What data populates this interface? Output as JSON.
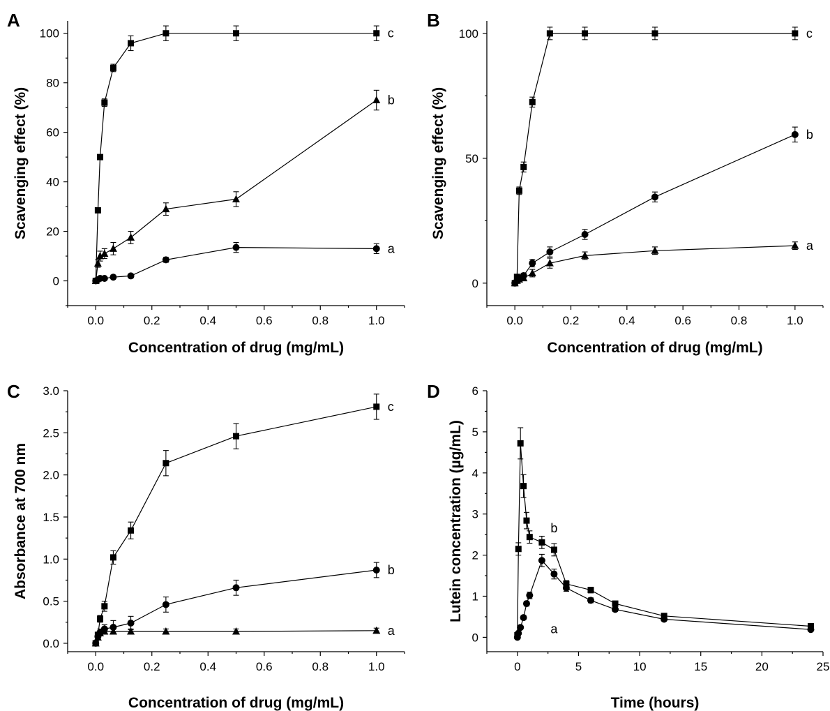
{
  "chart_data": [
    {
      "panel": "A",
      "type": "line",
      "xlabel": "Concentration of drug (mg/mL)",
      "ylabel": "Scavenging effect (%)",
      "xlim": [
        -0.1,
        1.1
      ],
      "ylim": [
        -10,
        105
      ],
      "xticks": [
        "0.0",
        "0.2",
        "0.4",
        "0.6",
        "0.8",
        "1.0"
      ],
      "yticks": [
        "0",
        "20",
        "40",
        "60",
        "80",
        "100"
      ],
      "series": [
        {
          "label": "c",
          "marker": "square",
          "x": [
            0,
            0.0078,
            0.0156,
            0.03125,
            0.0625,
            0.125,
            0.25,
            0.5,
            1.0
          ],
          "y": [
            0,
            28.5,
            50,
            72,
            86,
            96,
            100,
            100,
            100
          ],
          "err": [
            0.3,
            1,
            1,
            1.5,
            1.5,
            3,
            3,
            3,
            3
          ]
        },
        {
          "label": "b",
          "marker": "triangle",
          "x": [
            0,
            0.0078,
            0.0156,
            0.03125,
            0.0625,
            0.125,
            0.25,
            0.5,
            1.0
          ],
          "y": [
            0,
            7,
            10,
            11,
            13,
            17.5,
            29,
            33,
            73
          ],
          "err": [
            0.3,
            1.5,
            2,
            2,
            2.5,
            2.5,
            2.5,
            3,
            4
          ]
        },
        {
          "label": "a",
          "marker": "circle",
          "x": [
            0,
            0.0078,
            0.0156,
            0.03125,
            0.0625,
            0.125,
            0.25,
            0.5,
            1.0
          ],
          "y": [
            0,
            0.5,
            1,
            1,
            1.5,
            2,
            8.5,
            13.5,
            13
          ],
          "err": [
            0.3,
            0.4,
            0.5,
            0.5,
            0.5,
            0.8,
            1,
            2,
            2
          ]
        }
      ]
    },
    {
      "panel": "B",
      "type": "line",
      "xlabel": "Concentration of drug (mg/mL)",
      "ylabel": "Scavenging effect (%)",
      "xlim": [
        -0.1,
        1.1
      ],
      "ylim": [
        -9,
        105
      ],
      "xticks": [
        "0.0",
        "0.2",
        "0.4",
        "0.6",
        "0.8",
        "1.0"
      ],
      "yticks": [
        "0",
        "50",
        "100"
      ],
      "series": [
        {
          "label": "c",
          "marker": "square",
          "x": [
            0,
            0.0078,
            0.0156,
            0.03125,
            0.0625,
            0.125,
            0.25,
            0.5,
            1.0
          ],
          "y": [
            0,
            2.5,
            37,
            46.5,
            72.5,
            100,
            100,
            100,
            100
          ],
          "err": [
            0.3,
            0.5,
            1.5,
            2,
            2,
            2.5,
            2.5,
            2.5,
            2.5
          ]
        },
        {
          "label": "b",
          "marker": "circle",
          "x": [
            0,
            0.0078,
            0.0156,
            0.03125,
            0.0625,
            0.125,
            0.25,
            0.5,
            1.0
          ],
          "y": [
            0,
            1,
            2,
            3,
            8,
            12.5,
            19.5,
            34.5,
            59.5
          ],
          "err": [
            0.3,
            0.5,
            0.8,
            1,
            1.5,
            2,
            2,
            2,
            3
          ]
        },
        {
          "label": "a",
          "marker": "triangle",
          "x": [
            0,
            0.0078,
            0.0156,
            0.03125,
            0.0625,
            0.125,
            0.25,
            0.5,
            1.0
          ],
          "y": [
            0,
            1,
            1.5,
            2,
            4,
            8,
            11,
            13,
            15
          ],
          "err": [
            0.3,
            0.5,
            0.5,
            0.8,
            1.5,
            2,
            1.5,
            1.5,
            1.5
          ]
        }
      ]
    },
    {
      "panel": "C",
      "type": "line",
      "xlabel": "Concentration of drug (mg/mL)",
      "ylabel": "Absorbance at 700 nm",
      "xlim": [
        -0.1,
        1.1
      ],
      "ylim": [
        -0.1,
        3.0
      ],
      "xticks": [
        "0.0",
        "0.2",
        "0.4",
        "0.6",
        "0.8",
        "1.0"
      ],
      "yticks": [
        "0.0",
        "0.5",
        "1.0",
        "1.5",
        "2.0",
        "2.5",
        "3.0"
      ],
      "series": [
        {
          "label": "c",
          "marker": "square",
          "x": [
            0,
            0.0078,
            0.0156,
            0.03125,
            0.0625,
            0.125,
            0.25,
            0.5,
            1.0
          ],
          "y": [
            0,
            0.1,
            0.29,
            0.44,
            1.02,
            1.34,
            2.14,
            2.46,
            2.81
          ],
          "err": [
            0.02,
            0.03,
            0.04,
            0.06,
            0.08,
            0.1,
            0.15,
            0.15,
            0.15
          ]
        },
        {
          "label": "b",
          "marker": "circle",
          "x": [
            0,
            0.0078,
            0.0156,
            0.03125,
            0.0625,
            0.125,
            0.25,
            0.5,
            1.0
          ],
          "y": [
            0,
            0.08,
            0.13,
            0.17,
            0.19,
            0.24,
            0.46,
            0.66,
            0.87
          ],
          "err": [
            0.02,
            0.03,
            0.04,
            0.05,
            0.08,
            0.08,
            0.09,
            0.09,
            0.09
          ]
        },
        {
          "label": "a",
          "marker": "triangle",
          "x": [
            0,
            0.0078,
            0.0156,
            0.03125,
            0.0625,
            0.125,
            0.25,
            0.5,
            1.0
          ],
          "y": [
            0,
            0.07,
            0.12,
            0.14,
            0.14,
            0.14,
            0.14,
            0.14,
            0.15
          ],
          "err": [
            0.02,
            0.03,
            0.03,
            0.03,
            0.03,
            0.03,
            0.03,
            0.03,
            0.03
          ]
        }
      ]
    },
    {
      "panel": "D",
      "type": "line",
      "xlabel": "Time (hours)",
      "ylabel": "Lutein concentration (µg/mL)",
      "xlim": [
        -2.5,
        25
      ],
      "ylim": [
        -0.35,
        6
      ],
      "xticks": [
        "0",
        "5",
        "10",
        "15",
        "20",
        "25"
      ],
      "yticks": [
        "0",
        "1",
        "2",
        "3",
        "4",
        "5",
        "6"
      ],
      "series": [
        {
          "label": "b",
          "marker": "square",
          "x": [
            0,
            0.083,
            0.25,
            0.5,
            0.75,
            1,
            2,
            3,
            4,
            6,
            8,
            12,
            24
          ],
          "y": [
            0.05,
            2.15,
            4.72,
            3.68,
            2.84,
            2.44,
            2.31,
            2.13,
            1.3,
            1.15,
            0.82,
            0.52,
            0.27
          ],
          "err": [
            0.02,
            0.15,
            0.38,
            0.28,
            0.2,
            0.15,
            0.15,
            0.15,
            0.08,
            0.07,
            0.05,
            0.04,
            0.04
          ]
        },
        {
          "label": "a",
          "marker": "circle",
          "x": [
            0,
            0.083,
            0.25,
            0.5,
            0.75,
            1,
            2,
            3,
            4,
            6,
            8,
            12,
            24
          ],
          "y": [
            0,
            0.1,
            0.24,
            0.48,
            0.82,
            1.02,
            1.87,
            1.54,
            1.2,
            0.9,
            0.68,
            0.44,
            0.19
          ],
          "err": [
            0.02,
            0.03,
            0.04,
            0.05,
            0.06,
            0.08,
            0.15,
            0.12,
            0.08,
            0.06,
            0.05,
            0.04,
            0.03
          ]
        }
      ]
    }
  ]
}
